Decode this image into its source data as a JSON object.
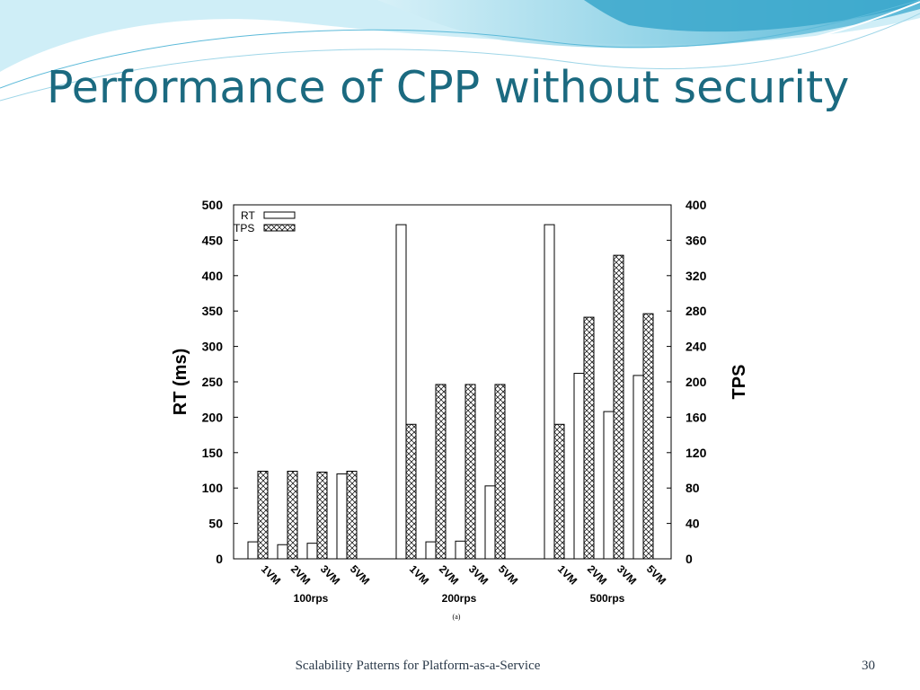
{
  "slide": {
    "title": "Performance of CPP without security",
    "footer": "Scalability Patterns for Platform-as-a-Service",
    "page_number": "30",
    "colors": {
      "title": "#1b6a80",
      "wave_light": "#bfe6f2",
      "wave_mid": "#79c8e0",
      "wave_dark": "#2f9fc4"
    }
  },
  "chart_data": {
    "type": "bar",
    "caption": "(a)",
    "groups": [
      "100rps",
      "200rps",
      "500rps"
    ],
    "categories": [
      "1VM",
      "2VM",
      "3VM",
      "5VM"
    ],
    "ylabel_left": "RT (ms)",
    "ylabel_right": "TPS",
    "ylim_left": [
      0,
      500
    ],
    "ylim_right": [
      0,
      400
    ],
    "yticks_left": [
      "0",
      "50",
      "100",
      "150",
      "200",
      "250",
      "300",
      "350",
      "400",
      "450",
      "500"
    ],
    "yticks_right": [
      "0",
      "40",
      "80",
      "120",
      "160",
      "200",
      "240",
      "280",
      "320",
      "360",
      "400"
    ],
    "legend_position": "top-left",
    "grid": false,
    "series": [
      {
        "name": "RT",
        "axis": "left",
        "pattern": "open",
        "values": [
          [
            24,
            20,
            22,
            120
          ],
          [
            472,
            24,
            25,
            103
          ],
          [
            472,
            262,
            208,
            259
          ]
        ]
      },
      {
        "name": "TPS",
        "axis": "right",
        "pattern": "crosshatch",
        "values": [
          [
            99,
            99,
            98,
            99
          ],
          [
            152,
            197,
            197,
            197
          ],
          [
            152,
            273,
            343,
            277
          ]
        ]
      }
    ]
  }
}
